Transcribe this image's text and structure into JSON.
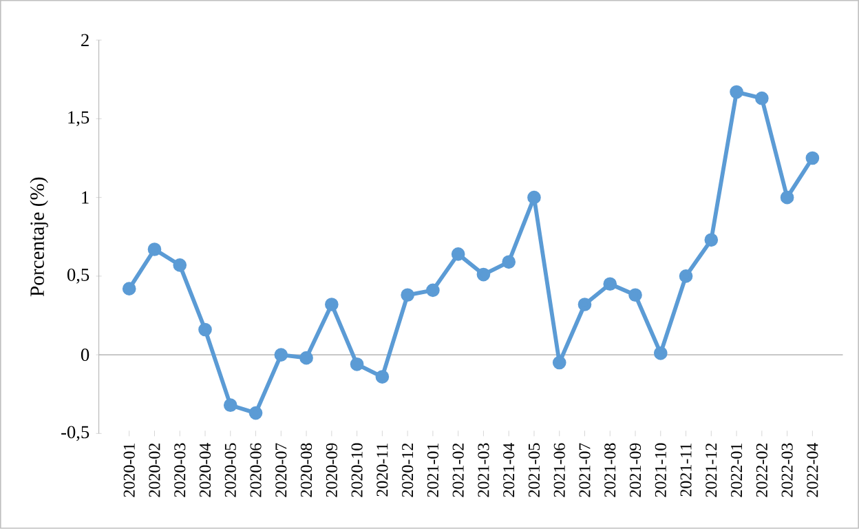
{
  "chart_data": {
    "type": "line",
    "ylabel": "Porcentaje (%)",
    "categories": [
      "2020-01",
      "2020-02",
      "2020-03",
      "2020-04",
      "2020-05",
      "2020-06",
      "2020-07",
      "2020-08",
      "2020-09",
      "2020-10",
      "2020-11",
      "2020-12",
      "2021-01",
      "2021-02",
      "2021-03",
      "2021-04",
      "2021-05",
      "2021-06",
      "2021-07",
      "2021-08",
      "2021-09",
      "2021-10",
      "2021-11",
      "2021-12",
      "2022-01",
      "2022-02",
      "2022-03",
      "2022-04"
    ],
    "values": [
      0.42,
      0.67,
      0.57,
      0.16,
      -0.32,
      -0.37,
      0,
      -0.02,
      0.32,
      -0.06,
      -0.14,
      0.38,
      0.41,
      0.64,
      0.51,
      0.59,
      1.0,
      -0.05,
      0.32,
      0.45,
      0.38,
      0.01,
      0.5,
      0.73,
      1.67,
      1.63,
      1.0,
      1.25
    ],
    "color": "#5b9bd5",
    "marker": "circle",
    "line_style": "solid",
    "grid": false,
    "ylim": [
      -0.5,
      2
    ],
    "ref_lines": [
      {
        "axis": "y",
        "value": 0,
        "color": "#bfbfbf",
        "line_style": "solid"
      }
    ],
    "yticks": [
      {
        "value": -0.5,
        "label": "-0,5"
      },
      0,
      {
        "value": 0.5,
        "label": "0,5"
      },
      1,
      {
        "value": 1.5,
        "label": "1,5"
      },
      2
    ]
  }
}
